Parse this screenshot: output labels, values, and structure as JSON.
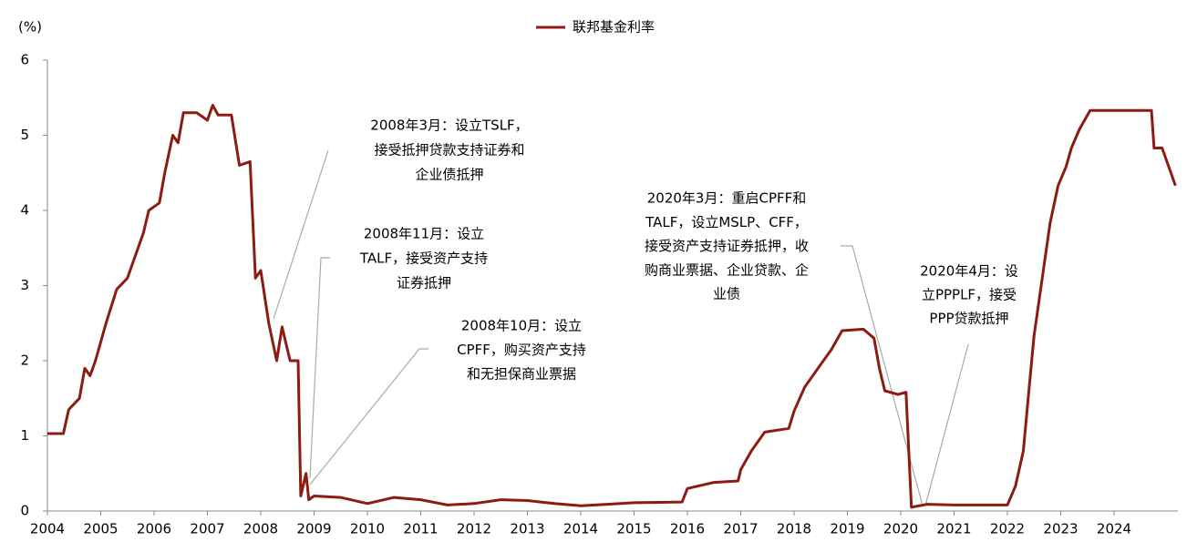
{
  "chart_data": {
    "type": "line",
    "y_label": "(%)",
    "series": [
      {
        "name": "联邦基金利率",
        "color": "#8c1c13",
        "x": [
          2004.0,
          2004.3,
          2004.4,
          2004.6,
          2004.7,
          2004.8,
          2004.9,
          2005.1,
          2005.3,
          2005.5,
          2005.6,
          2005.8,
          2005.9,
          2006.1,
          2006.2,
          2006.35,
          2006.45,
          2006.55,
          2006.8,
          2007.0,
          2007.1,
          2007.2,
          2007.45,
          2007.6,
          2007.8,
          2007.9,
          2008.0,
          2008.15,
          2008.3,
          2008.4,
          2008.55,
          2008.7,
          2008.75,
          2008.85,
          2008.9,
          2009.0,
          2009.5,
          2010.0,
          2010.5,
          2011.0,
          2011.5,
          2012.0,
          2012.5,
          2013.0,
          2013.5,
          2014.0,
          2014.5,
          2015.0,
          2015.9,
          2016.0,
          2016.5,
          2016.95,
          2017.0,
          2017.2,
          2017.45,
          2017.9,
          2018.0,
          2018.2,
          2018.45,
          2018.7,
          2018.9,
          2019.3,
          2019.5,
          2019.6,
          2019.7,
          2019.95,
          2020.1,
          2020.2,
          2020.5,
          2021.0,
          2021.5,
          2022.0,
          2022.15,
          2022.3,
          2022.4,
          2022.5,
          2022.65,
          2022.8,
          2022.95,
          2023.1,
          2023.2,
          2023.35,
          2023.55,
          2024.7,
          2024.75,
          2024.9,
          2025.15
        ],
        "values": [
          1.03,
          1.03,
          1.35,
          1.5,
          1.9,
          1.8,
          2.0,
          2.5,
          2.95,
          3.1,
          3.3,
          3.7,
          4.0,
          4.1,
          4.5,
          5.0,
          4.9,
          5.3,
          5.3,
          5.2,
          5.4,
          5.27,
          5.27,
          4.6,
          4.65,
          3.1,
          3.2,
          2.5,
          2.0,
          2.45,
          2.0,
          2.0,
          0.2,
          0.5,
          0.15,
          0.2,
          0.18,
          0.1,
          0.18,
          0.15,
          0.08,
          0.1,
          0.15,
          0.14,
          0.1,
          0.07,
          0.09,
          0.11,
          0.12,
          0.3,
          0.38,
          0.4,
          0.55,
          0.8,
          1.05,
          1.1,
          1.33,
          1.65,
          1.9,
          2.15,
          2.4,
          2.42,
          2.3,
          1.9,
          1.6,
          1.55,
          1.58,
          0.05,
          0.09,
          0.08,
          0.08,
          0.08,
          0.33,
          0.8,
          1.58,
          2.33,
          3.08,
          3.83,
          4.33,
          4.58,
          4.83,
          5.08,
          5.33,
          5.33,
          4.83,
          4.83,
          4.33
        ]
      }
    ],
    "xlim": [
      2004,
      2025.2
    ],
    "xticks": [
      2004,
      2005,
      2006,
      2007,
      2008,
      2009,
      2010,
      2011,
      2012,
      2013,
      2014,
      2015,
      2016,
      2017,
      2018,
      2019,
      2020,
      2021,
      2022,
      2023,
      2024
    ],
    "ylim": [
      0,
      6
    ],
    "yticks": [
      0,
      1,
      2,
      3,
      4,
      5,
      6
    ],
    "legend": "top",
    "annotations": [
      [
        "2008年3月：设立TSLF，",
        "接受抵押贷款支持证券和",
        "企业债抵押"
      ],
      [
        "2008年11月：设立",
        "TALF，接受资产支持",
        "证券抵押"
      ],
      [
        "2008年10月：设立",
        "CPFF，购买资产支持",
        "和无担保商业票据"
      ],
      [
        "2020年3月：重启CPFF和",
        "TALF，设立MSLP、CFF，",
        "接受资产支持证券抵押，收",
        "购商业票据、企业贷款、企",
        "业债"
      ],
      [
        "2020年4月：设",
        "立PPPLF，接受",
        "PPP贷款抵押"
      ]
    ]
  }
}
